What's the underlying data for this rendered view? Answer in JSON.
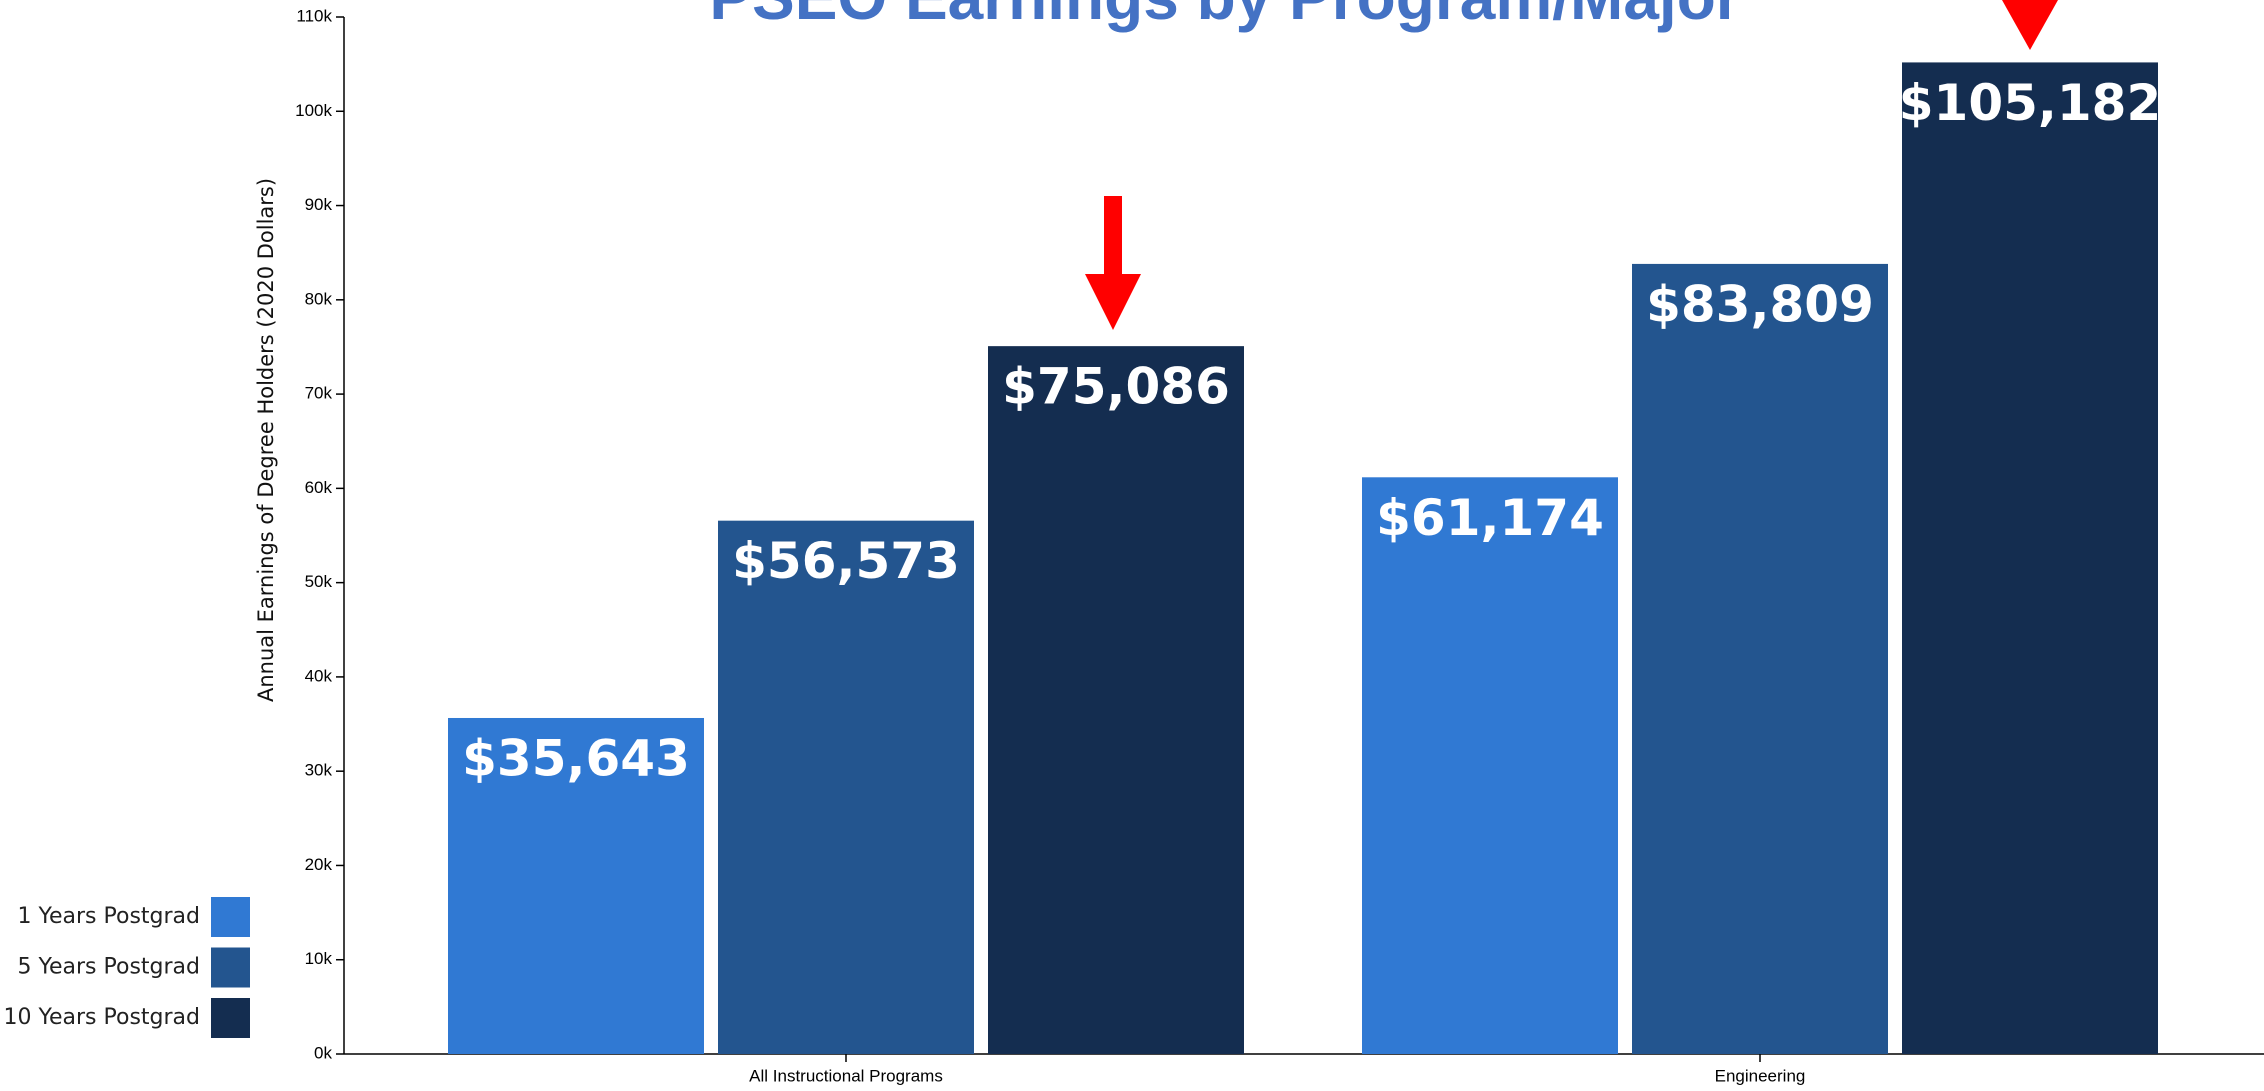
{
  "chart_data": {
    "type": "bar",
    "title": "PSEO Earnings by Program/Major",
    "y_label": "Annual Earnings of Degree Holders (2020 Dollars)",
    "categories": [
      "All Instructional Programs",
      "Engineering"
    ],
    "series": [
      {
        "name": "1 Years Postgrad",
        "color": "#3079d3",
        "values": [
          35643,
          61174
        ],
        "value_labels": [
          "$35,643",
          "$61,174"
        ]
      },
      {
        "name": "5 Years Postgrad",
        "color": "#23558f",
        "values": [
          56573,
          83809
        ],
        "value_labels": [
          "$56,573",
          "$83,809"
        ]
      },
      {
        "name": "10 Years Postgrad",
        "color": "#142d50",
        "values": [
          75086,
          105182
        ],
        "value_labels": [
          "$75,086",
          "$105,182"
        ]
      }
    ],
    "ylim": [
      0,
      110000
    ],
    "yticks": [
      {
        "value": 0,
        "label": "0k"
      },
      {
        "value": 10000,
        "label": "10k"
      },
      {
        "value": 20000,
        "label": "20k"
      },
      {
        "value": 30000,
        "label": "30k"
      },
      {
        "value": 40000,
        "label": "40k"
      },
      {
        "value": 50000,
        "label": "50k"
      },
      {
        "value": 60000,
        "label": "60k"
      },
      {
        "value": 70000,
        "label": "70k"
      },
      {
        "value": 80000,
        "label": "80k"
      },
      {
        "value": 90000,
        "label": "90k"
      },
      {
        "value": 100000,
        "label": "100k"
      },
      {
        "value": 110000,
        "label": "110k"
      }
    ],
    "legend": "bottom-left"
  }
}
